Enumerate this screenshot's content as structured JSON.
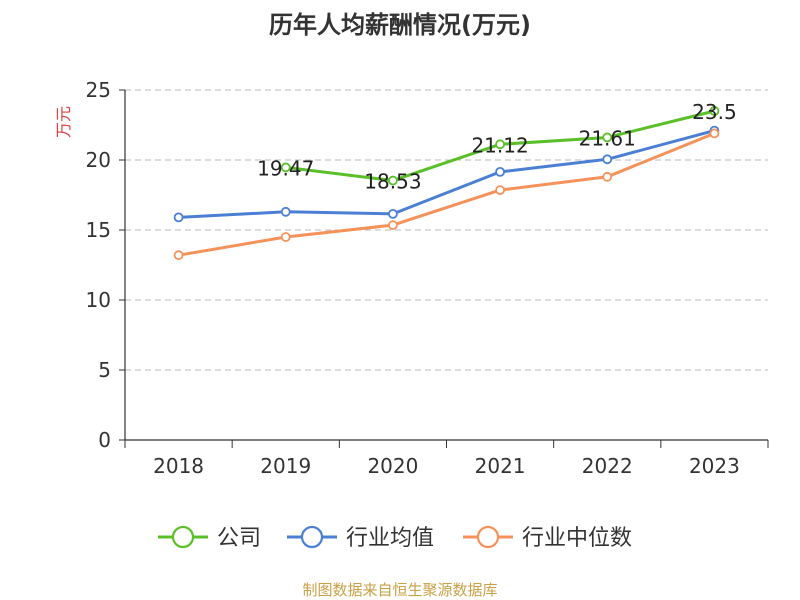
{
  "chart_data": {
    "type": "line",
    "title": "历年人均薪酬情况(万元)",
    "ylabel": "万元",
    "xlabel": "",
    "categories": [
      "2018",
      "2019",
      "2020",
      "2021",
      "2022",
      "2023"
    ],
    "ylim": [
      0,
      25
    ],
    "yticks": [
      0,
      5,
      10,
      15,
      20,
      25
    ],
    "grid": true,
    "legend_position": "bottom",
    "series": [
      {
        "name": "公司",
        "color": "#5bbf2a",
        "values": [
          null,
          19.47,
          18.53,
          21.12,
          21.61,
          23.5
        ],
        "labels": [
          null,
          "19.47",
          "18.53",
          "21.12",
          "21.61",
          "23.5"
        ]
      },
      {
        "name": "行业均值",
        "color": "#4a7fd4",
        "values": [
          15.9,
          16.3,
          16.15,
          19.15,
          20.05,
          22.1
        ]
      },
      {
        "name": "行业中位数",
        "color": "#f4925a",
        "values": [
          13.2,
          14.5,
          15.35,
          17.85,
          18.8,
          21.9
        ]
      }
    ]
  },
  "footer": {
    "source": "制图数据来自恒生聚源数据库",
    "source_color": "#c8a046"
  },
  "colors": {
    "ylabel": "#e03c3c",
    "grid": "#bbbbbb",
    "axis": "#333333"
  }
}
